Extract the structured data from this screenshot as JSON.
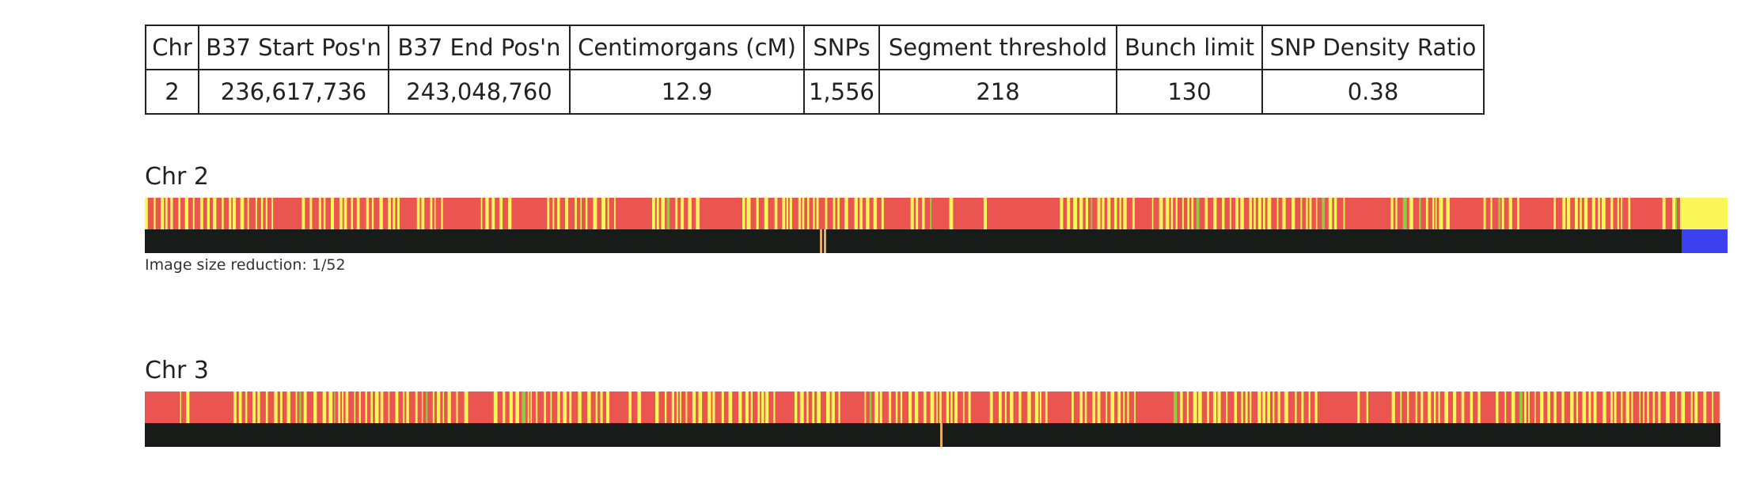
{
  "segment_table": {
    "headers": [
      "Chr",
      "B37 Start Pos'n",
      "B37 End Pos'n",
      "Centimorgans (cM)",
      "SNPs",
      "Segment threshold",
      "Bunch limit",
      "SNP Density Ratio"
    ],
    "row": [
      "2",
      "236,617,736",
      "243,048,760",
      "12.9",
      "1,556",
      "218",
      "130",
      "0.38"
    ]
  },
  "chromosomes": [
    {
      "label": "Chr 2",
      "note": "Image size reduction: 1/52",
      "colors": {
        "mismatch": "#ea5451",
        "match": "#fbf65a",
        "special": "#8dcf3c",
        "base": "#181c18",
        "highlight": "#e8a96a",
        "end_block": "#3c40ee"
      }
    },
    {
      "label": "Chr 3",
      "note": "",
      "colors": {
        "mismatch": "#ea5451",
        "match": "#fbf65a",
        "special": "#8dcf3c",
        "base": "#181c18",
        "highlight": "#e8a96a",
        "end_block": ""
      }
    }
  ]
}
